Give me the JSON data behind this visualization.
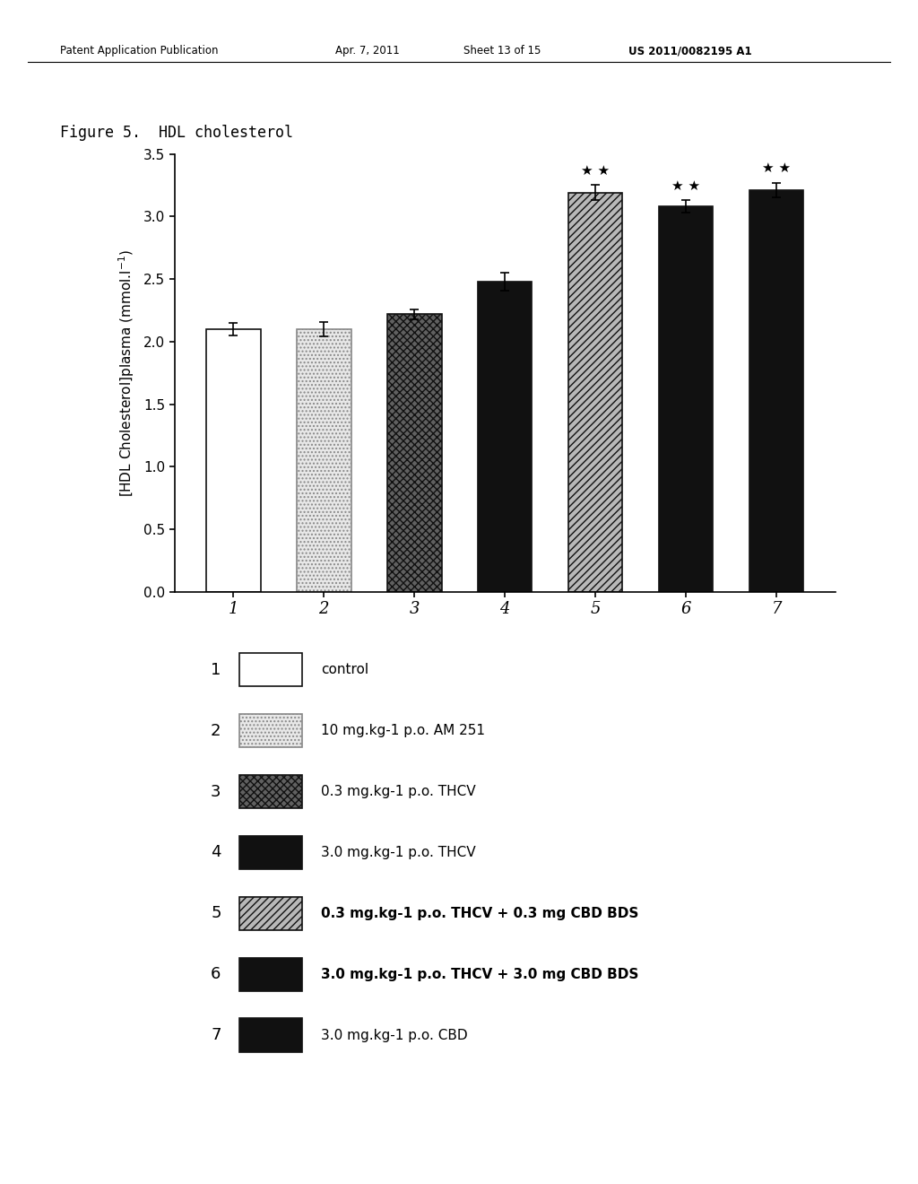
{
  "title": "Figure 5.  HDL cholesterol",
  "bar_values": [
    2.1,
    2.1,
    2.22,
    2.48,
    3.19,
    3.08,
    3.21
  ],
  "bar_errors": [
    0.05,
    0.06,
    0.04,
    0.07,
    0.06,
    0.05,
    0.06
  ],
  "bar_face_colors": [
    "#ffffff",
    "#e8e8e8",
    "#606060",
    "#111111",
    "#b8b8b8",
    "#111111",
    "#111111"
  ],
  "bar_hatch_patterns": [
    "",
    "....",
    "xxxx",
    "",
    "////",
    "",
    ""
  ],
  "bar_edge_colors": [
    "#111111",
    "#888888",
    "#111111",
    "#111111",
    "#111111",
    "#111111",
    "#111111"
  ],
  "significant_bar_indices": [
    4,
    5,
    6
  ],
  "ylim": [
    0.0,
    3.5
  ],
  "yticks": [
    0.0,
    0.5,
    1.0,
    1.5,
    2.0,
    2.5,
    3.0,
    3.5
  ],
  "xlabel_categories": [
    "1",
    "2",
    "3",
    "4",
    "5",
    "6",
    "7"
  ],
  "legend_items": [
    {
      "num": "1",
      "label": "control",
      "facecolor": "#ffffff",
      "edgecolor": "#111111",
      "hatch": "",
      "bold": false
    },
    {
      "num": "2",
      "label": "10 mg.kg-1 p.o. AM 251",
      "facecolor": "#e8e8e8",
      "edgecolor": "#888888",
      "hatch": "....",
      "bold": false
    },
    {
      "num": "3",
      "label": "0.3 mg.kg-1 p.o. THCV",
      "facecolor": "#606060",
      "edgecolor": "#111111",
      "hatch": "xxxx",
      "bold": false
    },
    {
      "num": "4",
      "label": "3.0 mg.kg-1 p.o. THCV",
      "facecolor": "#111111",
      "edgecolor": "#111111",
      "hatch": "",
      "bold": false
    },
    {
      "num": "5",
      "label": "0.3 mg.kg-1 p.o. THCV + 0.3 mg CBD BDS",
      "facecolor": "#b8b8b8",
      "edgecolor": "#111111",
      "hatch": "////",
      "bold": true
    },
    {
      "num": "6",
      "label": "3.0 mg.kg-1 p.o. THCV + 3.0 mg CBD BDS",
      "facecolor": "#111111",
      "edgecolor": "#111111",
      "hatch": "",
      "bold": true
    },
    {
      "num": "7",
      "label": "3.0 mg.kg-1 p.o. CBD",
      "facecolor": "#111111",
      "edgecolor": "#111111",
      "hatch": "",
      "bold": false
    }
  ],
  "background_color": "#ffffff",
  "bar_width": 0.6,
  "header_left": "Patent Application Publication",
  "header_mid1": "Apr. 7, 2011",
  "header_mid2": "Sheet 13 of 15",
  "header_right": "US 2011/0082195 A1"
}
